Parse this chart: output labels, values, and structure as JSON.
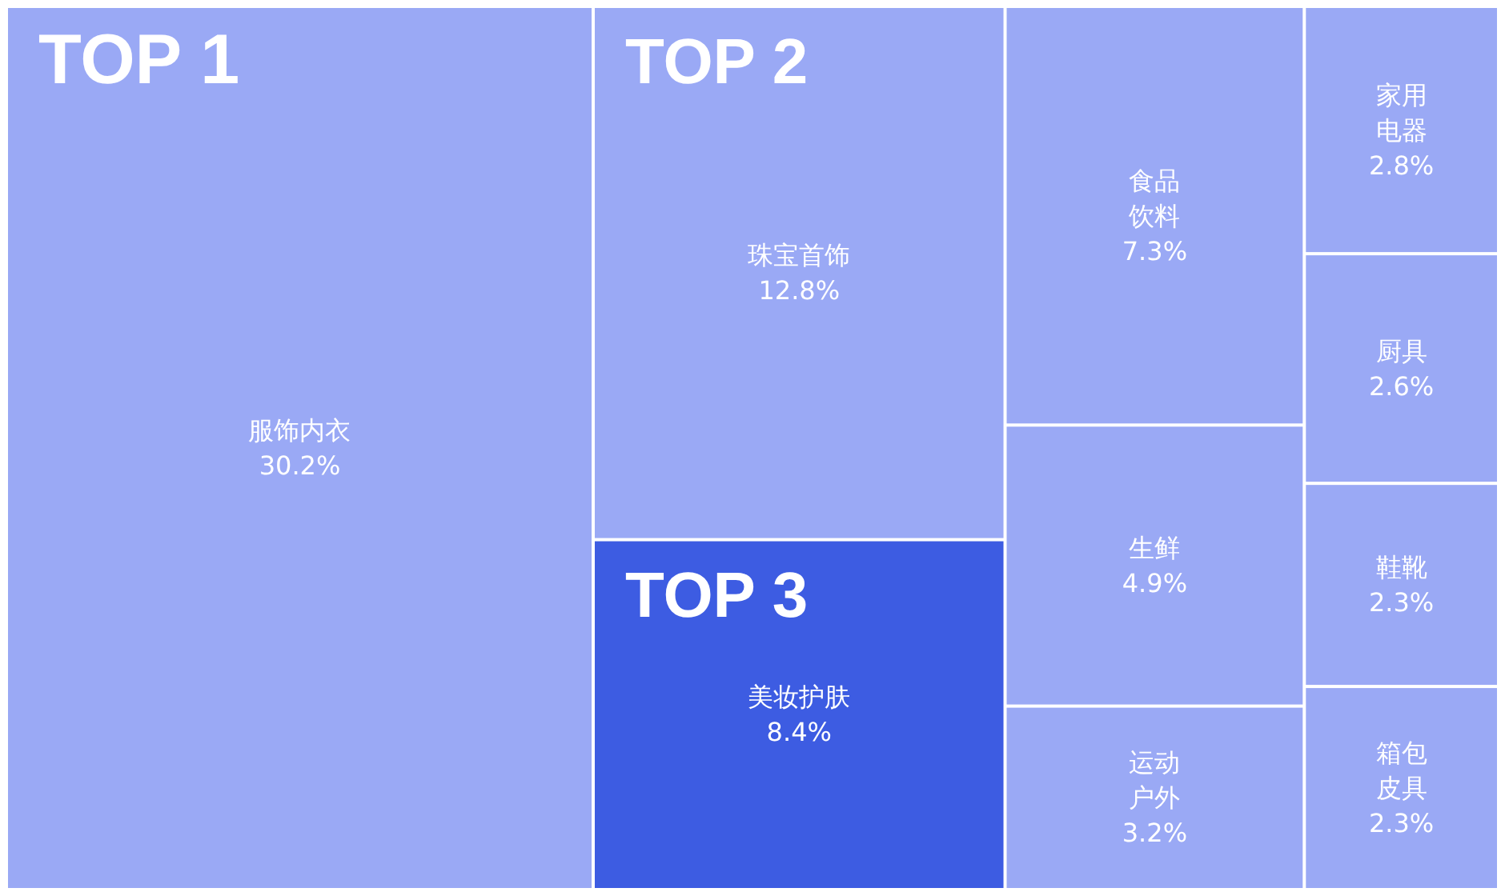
{
  "chart_data": {
    "type": "other",
    "categories": [
      "服饰内衣",
      "珠宝首饰",
      "美妆护肤",
      "食品饮料",
      "生鲜",
      "运动户外",
      "家用电器",
      "厨具",
      "鞋靴",
      "箱包皮具"
    ],
    "values": [
      30.2,
      12.8,
      8.4,
      7.3,
      4.9,
      3.2,
      2.8,
      2.6,
      2.3,
      2.3
    ],
    "value_labels": [
      "30.2%",
      "12.8%",
      "8.4%",
      "7.3%",
      "4.9%",
      "3.2%",
      "2.8%",
      "2.6%",
      "2.3%",
      "2.3%"
    ],
    "colors": [
      "#9aa9f5",
      "#9aa9f5",
      "#3d5ce2",
      "#9aa9f5",
      "#9aa9f5",
      "#9aa9f5",
      "#9aa9f5",
      "#9aa9f5",
      "#9aa9f5",
      "#9aa9f5"
    ],
    "annotations": [
      "TOP 1",
      "TOP 2",
      "TOP 3"
    ]
  }
}
